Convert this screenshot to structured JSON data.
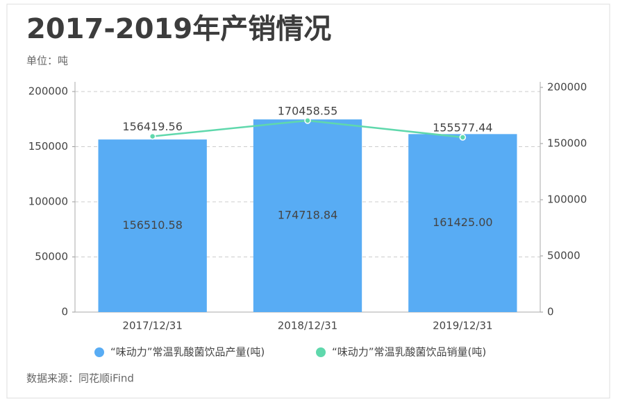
{
  "chart_data": {
    "type": "bar",
    "title": "2017-2019年产销情况",
    "subtitle": "单位：吨",
    "source": "数据来源：同花顺iFind",
    "categories": [
      "2017/12/31",
      "2018/12/31",
      "2019/12/31"
    ],
    "series": [
      {
        "name": "“味动力”常温乳酸菌饮品产量(吨)",
        "type": "bar",
        "color": "#58acf4",
        "values": [
          156510.58,
          174718.84,
          161425
        ],
        "value_labels": [
          "156510.58",
          "174718.84",
          "161425.00"
        ]
      },
      {
        "name": "“味动力”常温乳酸菌饮品销量(吨)",
        "type": "line",
        "axis": "y2",
        "color": "#5fd8ac",
        "values": [
          156419.56,
          170458.55,
          155577.44
        ],
        "value_labels": [
          "156419.56",
          "170458.55",
          "155577.44"
        ]
      }
    ],
    "ylim": [
      0,
      200000
    ],
    "yticks": [
      0,
      50000,
      100000,
      150000,
      200000
    ],
    "y2lim": [
      0,
      200000
    ],
    "y2ticks": [
      0,
      50000,
      100000,
      150000,
      200000
    ],
    "grid": true
  }
}
